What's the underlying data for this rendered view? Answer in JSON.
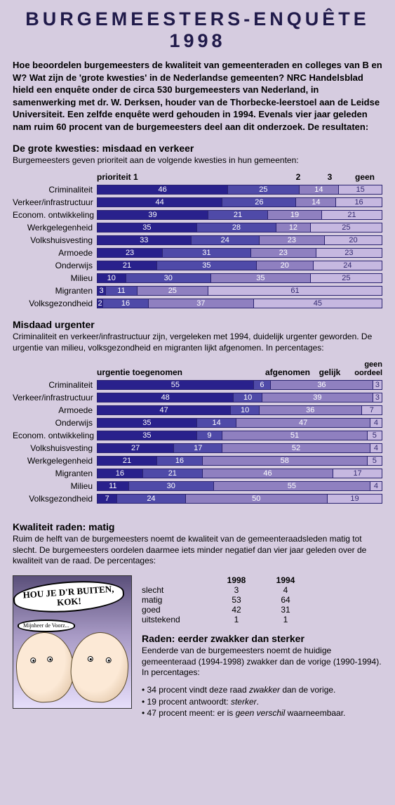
{
  "title_line1": "BURGEMEESTERS-ENQUÊTE",
  "title_line2": "1998",
  "intro": "Hoe beoordelen burgemeesters de kwaliteit van gemeenteraden en colleges van B en W? Wat zijn de 'grote kwesties' in de Nederlandse gemeenten? NRC Handelsblad hield een enquête onder de circa 530 burgemeesters van Nederland, in samenwerking met dr. W. Derksen, houder van de Thorbecke-leerstoel aan de Leidse Universiteit. Een zelfde enquête werd gehouden in 1994. Evenals vier jaar geleden nam ruim 60 procent van de burgemeesters deel aan dit onderzoek. De resultaten:",
  "chart1": {
    "heading": "De grote kwesties: misdaad en verkeer",
    "sub": "Burgemeesters geven prioriteit aan de volgende kwesties in hun gemeenten:",
    "headers": [
      "prioriteit 1",
      "2",
      "3",
      "geen"
    ],
    "rows": [
      {
        "label": "Criminaliteit",
        "v": [
          46,
          25,
          14,
          15
        ]
      },
      {
        "label": "Verkeer/infrastructuur",
        "v": [
          44,
          26,
          14,
          16
        ]
      },
      {
        "label": "Econom. ontwikkeling",
        "v": [
          39,
          21,
          19,
          21
        ]
      },
      {
        "label": "Werkgelegenheid",
        "v": [
          35,
          28,
          12,
          25
        ]
      },
      {
        "label": "Volkshuisvesting",
        "v": [
          33,
          24,
          23,
          20
        ]
      },
      {
        "label": "Armoede",
        "v": [
          23,
          31,
          23,
          23
        ]
      },
      {
        "label": "Onderwijs",
        "v": [
          21,
          35,
          20,
          24
        ]
      },
      {
        "label": "Milieu",
        "v": [
          10,
          30,
          35,
          25
        ]
      },
      {
        "label": "Migranten",
        "v": [
          3,
          11,
          25,
          61
        ]
      },
      {
        "label": "Volksgezondheid",
        "v": [
          2,
          16,
          37,
          45
        ]
      }
    ]
  },
  "chart2": {
    "heading": "Misdaad urgenter",
    "sub": "Criminaliteit en verkeer/infrastructuur zijn, vergeleken met 1994, duidelijk urgenter geworden. De urgentie van milieu, volksgezondheid en migranten lijkt afgenomen. In percentages:",
    "headers": [
      "urgentie toegenomen",
      "afgenomen",
      "gelijk",
      "geen oordeel"
    ],
    "rows": [
      {
        "label": "Criminaliteit",
        "v": [
          55,
          6,
          36,
          3
        ]
      },
      {
        "label": "Verkeer/infrastructuur",
        "v": [
          48,
          10,
          39,
          3
        ]
      },
      {
        "label": "Armoede",
        "v": [
          47,
          10,
          36,
          7
        ]
      },
      {
        "label": "Onderwijs",
        "v": [
          35,
          14,
          47,
          4
        ]
      },
      {
        "label": "Econom. ontwikkeling",
        "v": [
          35,
          9,
          51,
          5
        ]
      },
      {
        "label": "Volkshuisvesting",
        "v": [
          27,
          17,
          52,
          4
        ]
      },
      {
        "label": "Werkgelegenheid",
        "v": [
          21,
          16,
          58,
          5
        ]
      },
      {
        "label": "Migranten",
        "v": [
          16,
          21,
          46,
          17
        ]
      },
      {
        "label": "Milieu",
        "v": [
          11,
          30,
          55,
          4
        ]
      },
      {
        "label": "Volksgezondheid",
        "v": [
          7,
          24,
          50,
          19
        ]
      }
    ]
  },
  "quality": {
    "heading": "Kwaliteit raden: matig",
    "sub": "Ruim de helft van de burgemeesters noemt de kwaliteit van de gemeenteraadsleden matig tot slecht. De burgemeesters oordelen daarmee iets minder negatief dan vier jaar geleden over de kwaliteit van de raad. De percentages:",
    "year1": "1998",
    "year2": "1994",
    "rows": [
      {
        "label": "slecht",
        "a": "3",
        "b": "4"
      },
      {
        "label": "matig",
        "a": "53",
        "b": "64"
      },
      {
        "label": "goed",
        "a": "42",
        "b": "31"
      },
      {
        "label": "uitstekend",
        "a": "1",
        "b": "1"
      }
    ]
  },
  "cartoon_bubble1": "HOU JE D'R BUITEN, KOK!",
  "cartoon_bubble2": "Mijnheer de Voorz...",
  "raden": {
    "heading": "Raden: eerder zwakker dan sterker",
    "sub": "Eenderde van de burgemeesters noemt de huidige gemeenteraad (1994-1998) zwakker dan de vorige (1990-1994). In percentages:",
    "bullets": [
      "34 procent vindt deze raad zwakker dan de vorige.",
      "19 procent antwoordt: sterker.",
      "47 procent meent: er is geen verschil waarneembaar."
    ]
  },
  "colors": {
    "seg1": "#29218c",
    "seg2": "#4f4aa8",
    "seg3": "#8f80c0",
    "seg4": "#c6b8e0",
    "bg": "#d6cce0"
  }
}
